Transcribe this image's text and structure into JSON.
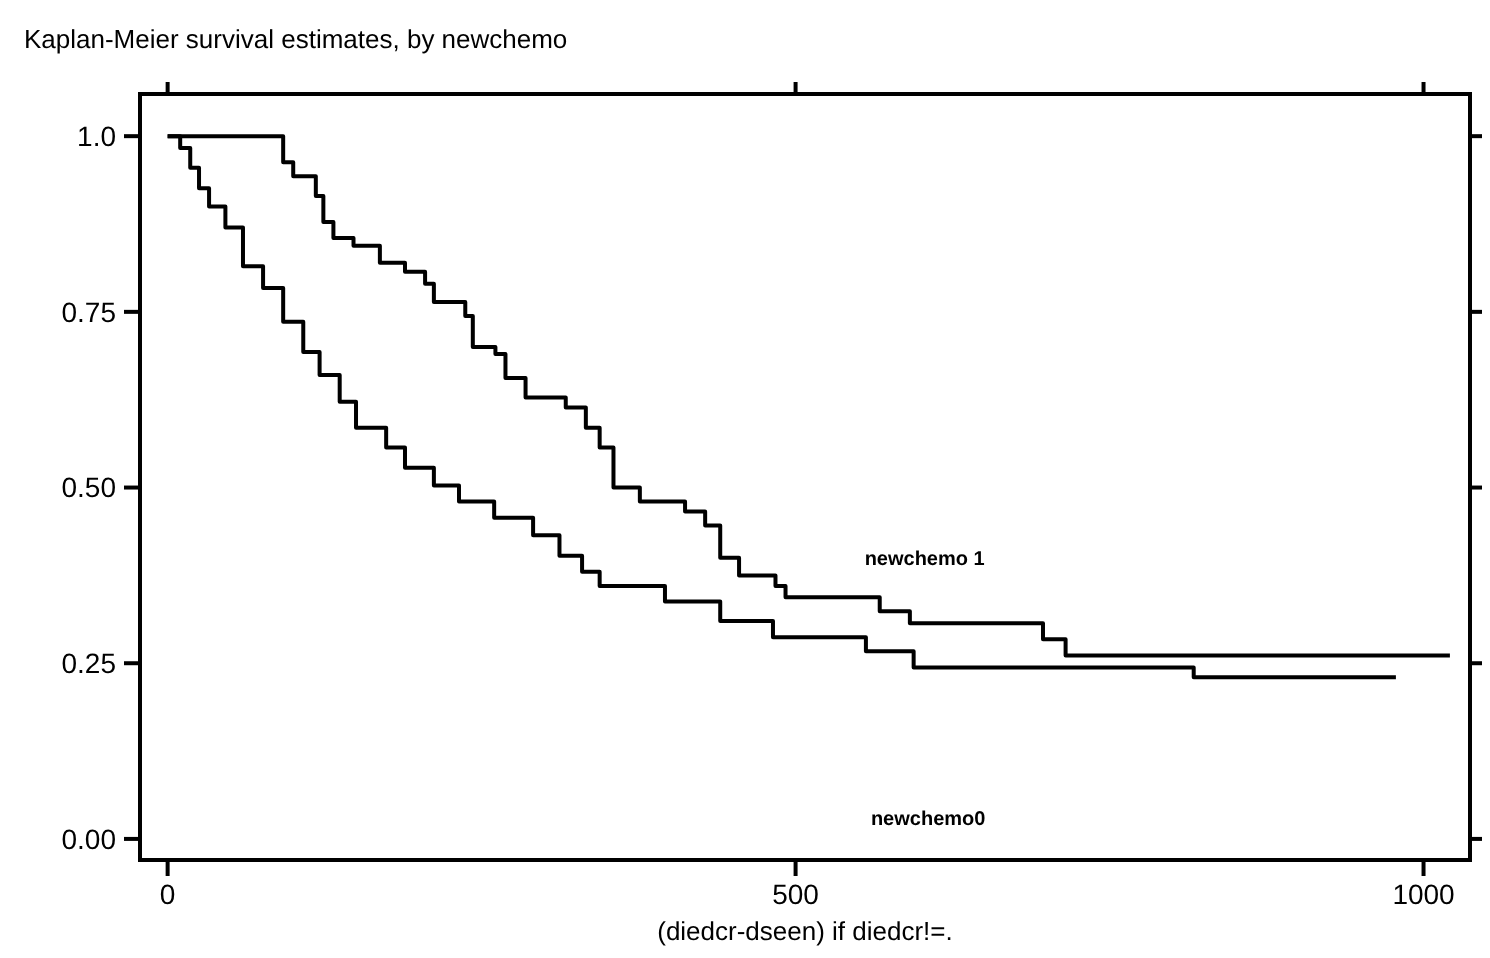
{
  "chart_data": {
    "type": "step",
    "title": "Kaplan-Meier survival estimates, by newchemo",
    "xlabel": "(diedcr-dseen)  if diedcr!=.",
    "xlim": [
      -22,
      1037
    ],
    "ylim": [
      -0.03,
      1.06
    ],
    "xticks": [
      0,
      500,
      1000
    ],
    "yticks": [
      {
        "value": 1,
        "label": "1.0"
      },
      {
        "value": 0.75,
        "label": "0.75"
      },
      {
        "value": 0.5,
        "label": "0.50"
      },
      {
        "value": 0.25,
        "label": "0.25"
      },
      {
        "value": 0,
        "label": "0.00"
      }
    ],
    "annotations": [
      "newchemo0"
    ],
    "grid": false,
    "legend": false,
    "marker": "none",
    "line_style": "solid",
    "series": [
      {
        "color": "#000000",
        "x": [
          0,
          10,
          18,
          25,
          33,
          46,
          60,
          76,
          92,
          108,
          121,
          137,
          150,
          174,
          189,
          212,
          232,
          260,
          291,
          312,
          330,
          344,
          396,
          440,
          482,
          556,
          594,
          817,
          978
        ],
        "values": [
          1,
          0.983,
          0.955,
          0.926,
          0.9,
          0.87,
          0.815,
          0.784,
          0.736,
          0.693,
          0.66,
          0.622,
          0.585,
          0.557,
          0.528,
          0.503,
          0.48,
          0.457,
          0.432,
          0.403,
          0.38,
          0.36,
          0.338,
          0.31,
          0.287,
          0.267,
          0.244,
          0.23,
          0.23
        ]
      },
      {
        "name": "newchemo 1",
        "color": "#000000",
        "x": [
          0,
          81,
          92,
          100,
          118,
          124,
          132,
          148,
          169,
          189,
          205,
          212,
          237,
          243,
          261,
          269,
          285,
          317,
          333,
          344,
          355,
          376,
          412,
          428,
          440,
          455,
          484,
          492,
          567,
          591,
          697,
          715,
          1021
        ],
        "values": [
          1,
          1,
          0.963,
          0.943,
          0.915,
          0.878,
          0.855,
          0.844,
          0.82,
          0.807,
          0.79,
          0.764,
          0.744,
          0.7,
          0.69,
          0.656,
          0.628,
          0.614,
          0.585,
          0.557,
          0.5,
          0.48,
          0.466,
          0.446,
          0.4,
          0.375,
          0.36,
          0.344,
          0.324,
          0.307,
          0.284,
          0.261,
          0.261
        ]
      }
    ]
  }
}
